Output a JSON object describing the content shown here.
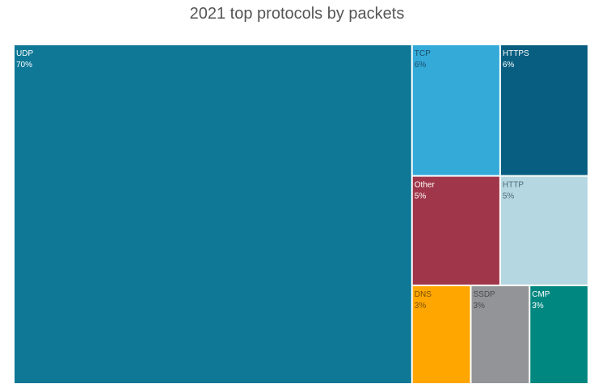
{
  "chart_data": {
    "type": "treemap",
    "title": "2021 top protocols by packets",
    "items": [
      {
        "name": "UDP",
        "value": 70,
        "label": "70%",
        "color": "#0e7896",
        "text_color": "#ffffff"
      },
      {
        "name": "TCP",
        "value": 6,
        "label": "6%",
        "color": "#34aad9",
        "text_color": "#1a4f67"
      },
      {
        "name": "HTTPS",
        "value": 6,
        "label": "6%",
        "color": "#075e80",
        "text_color": "#ffffff"
      },
      {
        "name": "Other",
        "value": 5,
        "label": "5%",
        "color": "#a0364a",
        "text_color": "#ffffff"
      },
      {
        "name": "HTTP",
        "value": 5,
        "label": "5%",
        "color": "#b5d7e1",
        "text_color": "#4d6b76"
      },
      {
        "name": "DNS",
        "value": 3,
        "label": "3%",
        "color": "#ffa600",
        "text_color": "#7a4f00"
      },
      {
        "name": "SSDP",
        "value": 3,
        "label": "3%",
        "color": "#929497",
        "text_color": "#4a4a4a"
      },
      {
        "name": "CMP",
        "value": 3,
        "label": "3%",
        "color": "#008780",
        "text_color": "#ffffff"
      }
    ]
  }
}
